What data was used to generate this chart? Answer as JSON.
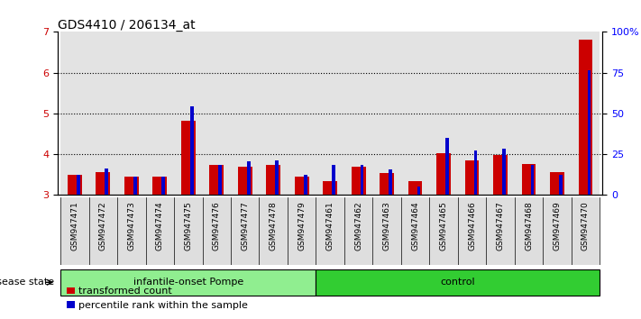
{
  "title": "GDS4410 / 206134_at",
  "samples": [
    "GSM947471",
    "GSM947472",
    "GSM947473",
    "GSM947474",
    "GSM947475",
    "GSM947476",
    "GSM947477",
    "GSM947478",
    "GSM947479",
    "GSM947461",
    "GSM947462",
    "GSM947463",
    "GSM947464",
    "GSM947465",
    "GSM947466",
    "GSM947467",
    "GSM947468",
    "GSM947469",
    "GSM947470"
  ],
  "red_values": [
    3.48,
    3.55,
    3.44,
    3.44,
    4.82,
    3.72,
    3.68,
    3.72,
    3.44,
    3.32,
    3.68,
    3.53,
    3.33,
    4.02,
    3.83,
    3.97,
    3.75,
    3.55,
    6.82
  ],
  "blue_values": [
    3.48,
    3.65,
    3.45,
    3.45,
    5.18,
    3.72,
    3.82,
    3.85,
    3.48,
    3.72,
    3.72,
    3.62,
    3.2,
    4.4,
    4.08,
    4.12,
    3.72,
    3.48,
    6.05
  ],
  "groups": [
    {
      "label": "infantile-onset Pompe",
      "start": 0,
      "end": 9,
      "color": "#90EE90"
    },
    {
      "label": "control",
      "start": 9,
      "end": 19,
      "color": "#32CD32"
    }
  ],
  "ylim": [
    3.0,
    7.0
  ],
  "yticks_left": [
    3,
    4,
    5,
    6,
    7
  ],
  "yticks_right": [
    0,
    25,
    50,
    75,
    100
  ],
  "bar_width": 0.5,
  "blue_bar_width": 0.12,
  "red_color": "#CC0000",
  "blue_color": "#0000CC",
  "col_bg_color": "#C8C8C8",
  "legend_items": [
    "transformed count",
    "percentile rank within the sample"
  ],
  "disease_state_label": "disease state",
  "grid_lines": [
    4,
    5,
    6
  ]
}
